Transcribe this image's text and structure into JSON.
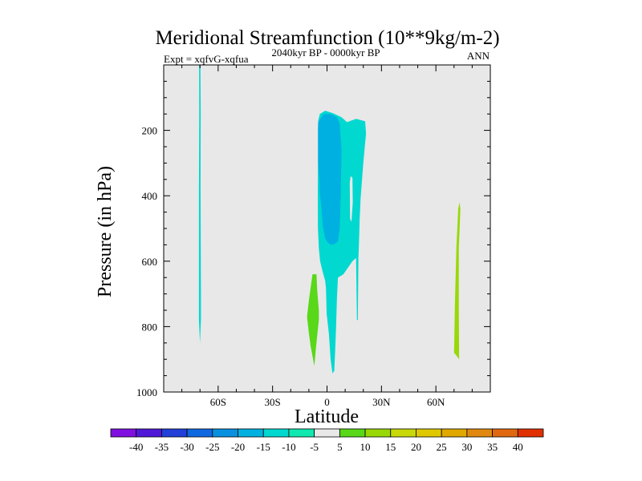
{
  "chart_data": {
    "type": "contour",
    "title": "Meridional Streamfunction (10**9kg/m-2)",
    "left_label": "Expt = xqfvG-xqfua",
    "center_label": "2040kyr BP - 0000kyr BP",
    "right_label": "ANN",
    "xlabel": "Latitude",
    "ylabel": "Pressure (in hPa)",
    "xlim": [
      -90,
      90
    ],
    "ylim": [
      1000,
      0
    ],
    "x_ticks": [
      {
        "value": -60,
        "label": "60S"
      },
      {
        "value": -30,
        "label": "30S"
      },
      {
        "value": 0,
        "label": "0"
      },
      {
        "value": 30,
        "label": "30N"
      },
      {
        "value": 60,
        "label": "60N"
      }
    ],
    "y_ticks": [
      {
        "value": 200,
        "label": "200"
      },
      {
        "value": 400,
        "label": "400"
      },
      {
        "value": 600,
        "label": "600"
      },
      {
        "value": 800,
        "label": "800"
      },
      {
        "value": 1000,
        "label": "1000"
      }
    ],
    "regions": [
      {
        "name": "neg-cell-70S",
        "level": -10,
        "points": [
          [
            -70.5,
            0
          ],
          [
            -69.8,
            0
          ],
          [
            -69.6,
            140
          ],
          [
            -69.7,
            370
          ],
          [
            -69.5,
            700
          ],
          [
            -69.5,
            780
          ],
          [
            -70,
            850
          ],
          [
            -70.6,
            780
          ],
          [
            -70.6,
            380
          ],
          [
            -70.4,
            140
          ]
        ]
      },
      {
        "name": "neg-cell-tropics-outer",
        "level": -10,
        "points": [
          [
            -4.8,
            170
          ],
          [
            -4,
            150
          ],
          [
            -1,
            140
          ],
          [
            3,
            147
          ],
          [
            8,
            160
          ],
          [
            11,
            175
          ],
          [
            16,
            165
          ],
          [
            21,
            172
          ],
          [
            21.5,
            210
          ],
          [
            20,
            300
          ],
          [
            18.5,
            410
          ],
          [
            18,
            470
          ],
          [
            17.5,
            560
          ],
          [
            17.3,
            590
          ],
          [
            17,
            780
          ],
          [
            16.5,
            780
          ],
          [
            16,
            590
          ],
          [
            14,
            600
          ],
          [
            9,
            640
          ],
          [
            6,
            650
          ],
          [
            5.5,
            710
          ],
          [
            5,
            800
          ],
          [
            4.5,
            870
          ],
          [
            4,
            935
          ],
          [
            3,
            943
          ],
          [
            2,
            900
          ],
          [
            1,
            820
          ],
          [
            -0.2,
            760
          ],
          [
            -0.5,
            700
          ],
          [
            -0.6,
            680
          ],
          [
            -1,
            660
          ],
          [
            -2.5,
            630
          ],
          [
            -3.8,
            600
          ],
          [
            -4.5,
            560
          ],
          [
            -5,
            500
          ],
          [
            -5.1,
            400
          ],
          [
            -5,
            300
          ],
          [
            -4.9,
            200
          ]
        ]
      },
      {
        "name": "neg-cell-tropics-core",
        "level": -15,
        "points": [
          [
            -4.9,
            175
          ],
          [
            -1.7,
            150
          ],
          [
            2,
            150
          ],
          [
            5.5,
            160
          ],
          [
            7,
            180
          ],
          [
            8,
            260
          ],
          [
            7.5,
            400
          ],
          [
            7,
            500
          ],
          [
            6,
            540
          ],
          [
            4,
            548
          ],
          [
            2,
            550
          ],
          [
            0,
            540
          ],
          [
            -1,
            530
          ],
          [
            -2.4,
            490
          ],
          [
            -3,
            440
          ],
          [
            -4,
            390
          ],
          [
            -4.2,
            350
          ],
          [
            -4.9,
            300
          ],
          [
            -5,
            200
          ]
        ]
      },
      {
        "name": "neg-cell-core-hole",
        "level": 0,
        "points": [
          [
            12.5,
            360
          ],
          [
            13,
            340
          ],
          [
            14,
            345
          ],
          [
            14.2,
            420
          ],
          [
            13.5,
            480
          ],
          [
            12.7,
            470
          ],
          [
            12.6,
            400
          ]
        ]
      },
      {
        "name": "pos-cell-10S",
        "level": 5,
        "points": [
          [
            -8,
            640
          ],
          [
            -5.8,
            640
          ],
          [
            -5.4,
            690
          ],
          [
            -4.5,
            750
          ],
          [
            -4.5,
            780
          ],
          [
            -6,
            860
          ],
          [
            -6.8,
            910
          ],
          [
            -7,
            920
          ],
          [
            -9,
            860
          ],
          [
            -10,
            820
          ],
          [
            -11,
            770
          ],
          [
            -10,
            720
          ]
        ]
      },
      {
        "name": "pos-cell-72N",
        "level": 10,
        "points": [
          [
            73,
            420
          ],
          [
            73.5,
            440
          ],
          [
            72.6,
            560
          ],
          [
            72.6,
            740
          ],
          [
            72.8,
            900
          ],
          [
            71.5,
            890
          ],
          [
            70,
            880
          ],
          [
            70.5,
            730
          ],
          [
            71.3,
            560
          ],
          [
            72.3,
            440
          ]
        ]
      }
    ],
    "legend_levels": [
      -40,
      -35,
      -30,
      -25,
      -20,
      -15,
      -10,
      -5,
      5,
      10,
      15,
      20,
      25,
      30,
      35,
      40
    ],
    "legend_colors": [
      "#8010e0",
      "#5018d8",
      "#2040d8",
      "#1068e0",
      "#0890e0",
      "#00b0e0",
      "#00d8d0",
      "#10e8b0",
      "#e8e8e8",
      "#58d818",
      "#98d808",
      "#c8d808",
      "#e0c800",
      "#e0a800",
      "#e08810",
      "#e06810",
      "#e03000"
    ],
    "level_colors": {
      "-15": "#00b0e0",
      "-10": "#00d8d0",
      "0": "#e8e8e8",
      "5": "#58d818",
      "10": "#98d808"
    },
    "background_color": "#e8e8e8"
  }
}
